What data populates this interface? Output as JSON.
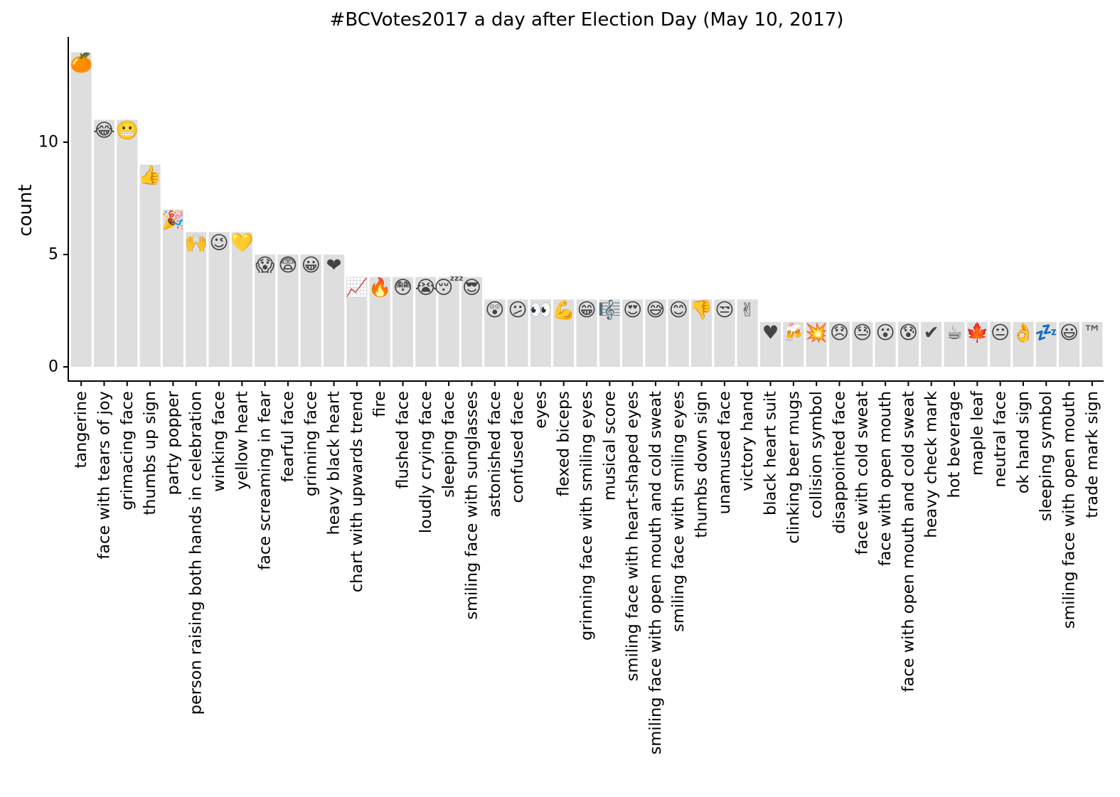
{
  "chart_data": {
    "type": "bar",
    "title": "#BCVotes2017 a day after Election Day (May 10, 2017)",
    "xlabel": "",
    "ylabel": "count",
    "ylim": [
      0,
      14.6
    ],
    "yticks": [
      0,
      5,
      10
    ],
    "grid": false,
    "legend": "none",
    "bar_color": "#dedede",
    "categories": [
      "tangerine",
      "face with tears of joy",
      "grimacing face",
      "thumbs up sign",
      "party popper",
      "person raising both hands in celebration",
      "winking face",
      "yellow heart",
      "face screaming in fear",
      "fearful face",
      "grinning face",
      "heavy black heart",
      "chart with upwards trend",
      "fire",
      "flushed face",
      "loudly crying face",
      "sleeping face",
      "smiling face with sunglasses",
      "astonished face",
      "confused face",
      "eyes",
      "flexed biceps",
      "grinning face with smiling eyes",
      "musical score",
      "smiling face with heart-shaped eyes",
      "smiling face with open mouth and cold sweat",
      "smiling face with smiling eyes",
      "thumbs down sign",
      "unamused face",
      "victory hand",
      "black heart suit",
      "clinking beer mugs",
      "collision symbol",
      "disappointed face",
      "face with cold sweat",
      "face with open mouth",
      "face with open mouth and cold sweat",
      "heavy check mark",
      "hot beverage",
      "maple leaf",
      "neutral face",
      "ok hand sign",
      "sleeping symbol",
      "smiling face with open mouth",
      "trade mark sign"
    ],
    "values": [
      14,
      11,
      11,
      9,
      7,
      6,
      6,
      6,
      5,
      5,
      5,
      5,
      4,
      4,
      4,
      4,
      4,
      4,
      3,
      3,
      3,
      3,
      3,
      3,
      3,
      3,
      3,
      3,
      3,
      3,
      2,
      2,
      2,
      2,
      2,
      2,
      2,
      2,
      2,
      2,
      2,
      2,
      2,
      2,
      2
    ],
    "emoji_marks": [
      "🍊",
      "😂",
      "😬",
      "👍",
      "🎉",
      "🙌",
      "😉",
      "💛",
      "😱",
      "😨",
      "😀",
      "❤",
      "📈",
      "🔥",
      "😳",
      "😭",
      "😴",
      "😎",
      "😲",
      "😕",
      "👀",
      "💪",
      "😁",
      "🎼",
      "😍",
      "😅",
      "😊",
      "👎",
      "😒",
      "✌",
      "♥",
      "🍻",
      "💥",
      "😞",
      "😓",
      "😮",
      "😰",
      "✔",
      "☕",
      "🍁",
      "😐",
      "👌",
      "💤",
      "😃",
      "™"
    ]
  }
}
